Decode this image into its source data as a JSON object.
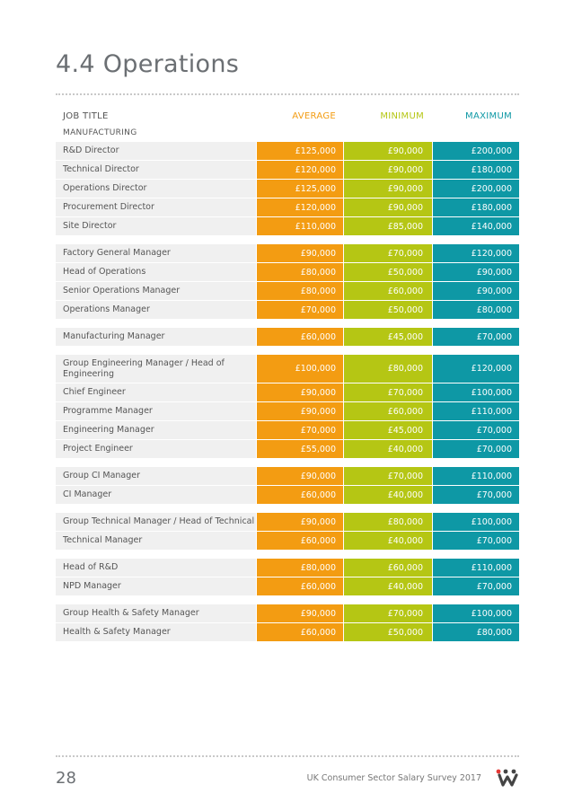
{
  "page": {
    "title": "4.4 Operations",
    "page_number": "28",
    "footer_text": "UK Consumer Sector Salary Survey 2017"
  },
  "table": {
    "headers": {
      "job_title": "JOB TITLE",
      "average": "AVERAGE",
      "minimum": "MINIMUM",
      "maximum": "MAXIMUM"
    },
    "section_label": "MANUFACTURING",
    "groups": [
      [
        {
          "title": "R&D Director",
          "average": "£125,000",
          "minimum": "£90,000",
          "maximum": "£200,000"
        },
        {
          "title": "Technical Director",
          "average": "£120,000",
          "minimum": "£90,000",
          "maximum": "£180,000"
        },
        {
          "title": "Operations Director",
          "average": "£125,000",
          "minimum": "£90,000",
          "maximum": "£200,000"
        },
        {
          "title": "Procurement Director",
          "average": "£120,000",
          "minimum": "£90,000",
          "maximum": "£180,000"
        },
        {
          "title": "Site Director",
          "average": "£110,000",
          "minimum": "£85,000",
          "maximum": "£140,000"
        }
      ],
      [
        {
          "title": "Factory General Manager",
          "average": "£90,000",
          "minimum": "£70,000",
          "maximum": "£120,000"
        },
        {
          "title": "Head of Operations",
          "average": "£80,000",
          "minimum": "£50,000",
          "maximum": "£90,000"
        },
        {
          "title": "Senior Operations Manager",
          "average": "£80,000",
          "minimum": "£60,000",
          "maximum": "£90,000"
        },
        {
          "title": "Operations Manager",
          "average": "£70,000",
          "minimum": "£50,000",
          "maximum": "£80,000"
        }
      ],
      [
        {
          "title": "Manufacturing Manager",
          "average": "£60,000",
          "minimum": "£45,000",
          "maximum": "£70,000"
        }
      ],
      [
        {
          "title": "Group Engineering Manager / Head of Engineering",
          "average": "£100,000",
          "minimum": "£80,000",
          "maximum": "£120,000",
          "tall": true
        },
        {
          "title": "Chief Engineer",
          "average": "£90,000",
          "minimum": "£70,000",
          "maximum": "£100,000"
        },
        {
          "title": "Programme Manager",
          "average": "£90,000",
          "minimum": "£60,000",
          "maximum": "£110,000"
        },
        {
          "title": "Engineering Manager",
          "average": "£70,000",
          "minimum": "£45,000",
          "maximum": "£70,000"
        },
        {
          "title": "Project Engineer",
          "average": "£55,000",
          "minimum": "£40,000",
          "maximum": "£70,000"
        }
      ],
      [
        {
          "title": "Group CI Manager",
          "average": "£90,000",
          "minimum": "£70,000",
          "maximum": "£110,000"
        },
        {
          "title": "CI Manager",
          "average": "£60,000",
          "minimum": "£40,000",
          "maximum": "£70,000"
        }
      ],
      [
        {
          "title": "Group Technical Manager /  Head of Technical",
          "average": "£90,000",
          "minimum": "£80,000",
          "maximum": "£100,000"
        },
        {
          "title": "Technical Manager",
          "average": "£60,000",
          "minimum": "£40,000",
          "maximum": "£70,000"
        }
      ],
      [
        {
          "title": "Head of R&D",
          "average": "£80,000",
          "minimum": "£60,000",
          "maximum": "£110,000"
        },
        {
          "title": "NPD Manager",
          "average": "£60,000",
          "minimum": "£40,000",
          "maximum": "£70,000"
        }
      ],
      [
        {
          "title": "Group Health & Safety Manager",
          "average": "£90,000",
          "minimum": "£70,000",
          "maximum": "£100,000"
        },
        {
          "title": "Health & Safety Manager",
          "average": "£60,000",
          "minimum": "£50,000",
          "maximum": "£80,000"
        }
      ]
    ]
  },
  "colors": {
    "average": "#f39c12",
    "minimum": "#b5c614",
    "maximum": "#0e98a5"
  },
  "logo": {
    "icon": "company-logo-icon"
  }
}
